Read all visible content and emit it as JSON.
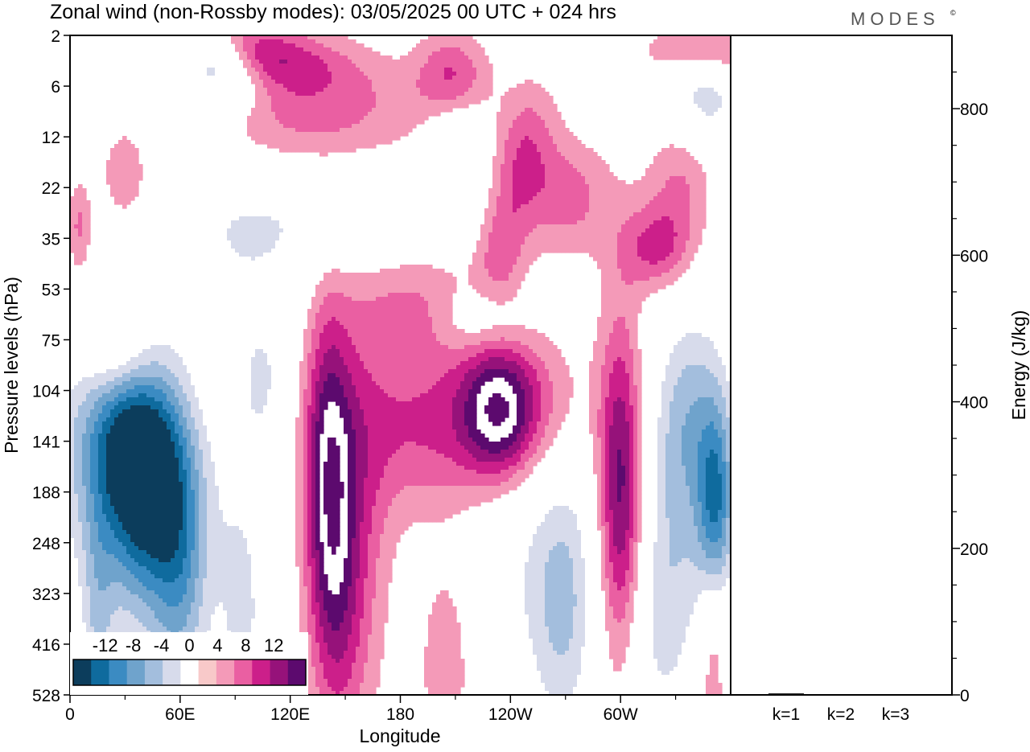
{
  "title": "Zonal wind (non-Rossby modes):  03/05/2025  00 UTC  + 024 hrs",
  "brand": "MODES",
  "brand_mark": "©",
  "chart_data": [
    {
      "type": "heatmap",
      "xlabel": "Longitude",
      "ylabel": "Pressure levels (hPa)",
      "x_ticks": [
        "0",
        "60E",
        "120E",
        "180",
        "120W",
        "60W"
      ],
      "x_tick_values": [
        0,
        60,
        120,
        180,
        240,
        300
      ],
      "xlim": [
        0,
        360
      ],
      "y_ticks": [
        "2",
        "6",
        "12",
        "22",
        "35",
        "53",
        "75",
        "104",
        "141",
        "188",
        "248",
        "323",
        "416",
        "528"
      ],
      "colorbar": {
        "labels": [
          "-12",
          "-8",
          "-4",
          "0",
          "4",
          "8",
          "12"
        ],
        "label_values": [
          -12,
          -8,
          -4,
          0,
          4,
          8,
          12
        ],
        "levels": [
          -14,
          -12,
          -10,
          -8,
          -6,
          -4,
          -2,
          2,
          4,
          6,
          8,
          10,
          12,
          14
        ],
        "colors": [
          "#0c3d5c",
          "#0f6b9e",
          "#3b8bc2",
          "#6fa3cc",
          "#a3bedd",
          "#d7dbeb",
          "#ffffff",
          "#f8c9c9",
          "#f49ab8",
          "#ea5fa2",
          "#cc1f8a",
          "#96127a",
          "#5c0a6e"
        ]
      },
      "features": [
        {
          "lon": 40,
          "level": 8.2,
          "value": -13,
          "sx": 18,
          "sy": 1.6,
          "tilt": -0.8
        },
        {
          "lon": 32,
          "level": 8.8,
          "value": -9,
          "sx": 28,
          "sy": 2.2,
          "tilt": -0.6
        },
        {
          "lon": 26,
          "level": 6.2,
          "value": 9,
          "sx": 16,
          "sy": 0.9,
          "tilt": -0.3
        },
        {
          "lon": 80,
          "level": 0.4,
          "value": -9,
          "sx": 16,
          "sy": 0.6,
          "tilt": -0.6
        },
        {
          "lon": 85,
          "level": 0.2,
          "value": 6,
          "sx": 40,
          "sy": 0.4,
          "tilt": -0.2
        },
        {
          "lon": 40,
          "level": 0.8,
          "value": -5,
          "sx": 30,
          "sy": 1.0,
          "tilt": 0
        },
        {
          "lon": 140,
          "level": 8.6,
          "value": 9,
          "sx": 9,
          "sy": 2.4,
          "tilt": 0
        },
        {
          "lon": 155,
          "level": 9.6,
          "value": 5,
          "sx": 14,
          "sy": 2.8,
          "tilt": 0
        },
        {
          "lon": 146,
          "level": 11.0,
          "value": 4,
          "sx": 10,
          "sy": 2.2,
          "tilt": 0
        },
        {
          "lon": 195,
          "level": 7.7,
          "value": 6,
          "sx": 32,
          "sy": 1.2,
          "tilt": 0
        },
        {
          "lon": 233,
          "level": 7.4,
          "value": 9,
          "sx": 14,
          "sy": 0.9,
          "tilt": 0
        },
        {
          "lon": 250,
          "level": 7.3,
          "value": 5,
          "sx": 22,
          "sy": 1.1,
          "tilt": 0
        },
        {
          "lon": 300,
          "level": 9.0,
          "value": 9,
          "sx": 8,
          "sy": 2.2,
          "tilt": 0
        },
        {
          "lon": 300,
          "level": 10.0,
          "value": 4,
          "sx": 14,
          "sy": 3.2,
          "tilt": 0
        },
        {
          "lon": 352,
          "level": 9.3,
          "value": -10,
          "sx": 7,
          "sy": 1.3,
          "tilt": 0
        },
        {
          "lon": 340,
          "level": 7.4,
          "value": -6,
          "sx": 16,
          "sy": 1.5,
          "tilt": 0
        },
        {
          "lon": 345,
          "level": 1.2,
          "value": -7,
          "sx": 14,
          "sy": 0.9,
          "tilt": 0
        },
        {
          "lon": 348,
          "level": 0.3,
          "value": 7,
          "sx": 22,
          "sy": 0.4,
          "tilt": 0
        },
        {
          "lon": 208,
          "level": 0.8,
          "value": 6,
          "sx": 14,
          "sy": 0.6,
          "tilt": 0
        },
        {
          "lon": 248,
          "level": 2.2,
          "value": 5,
          "sx": 12,
          "sy": 0.9,
          "tilt": 0.5
        },
        {
          "lon": 320,
          "level": 4.2,
          "value": 6,
          "sx": 14,
          "sy": 0.6,
          "tilt": 0
        },
        {
          "lon": 270,
          "level": 3.2,
          "value": 5,
          "sx": 18,
          "sy": 0.8,
          "tilt": 0
        },
        {
          "lon": 235,
          "level": 4.2,
          "value": 5,
          "sx": 10,
          "sy": 0.9,
          "tilt": 0.6
        },
        {
          "lon": 262,
          "level": 10.2,
          "value": -4,
          "sx": 28,
          "sy": 2.2,
          "tilt": 0.4
        },
        {
          "lon": 100,
          "level": 1.5,
          "value": 4,
          "sx": 30,
          "sy": 1.2,
          "tilt": -0.4
        },
        {
          "lon": 150,
          "level": 1.4,
          "value": 4,
          "sx": 40,
          "sy": 0.9,
          "tilt": -0.3
        },
        {
          "lon": 95,
          "level": 3.8,
          "value": -4,
          "sx": 30,
          "sy": 1.2,
          "tilt": 0
        },
        {
          "lon": 165,
          "level": 3.4,
          "value": -4,
          "sx": 40,
          "sy": 0.8,
          "tilt": 0
        },
        {
          "lon": 210,
          "level": 2.2,
          "value": -4,
          "sx": 12,
          "sy": 0.7,
          "tilt": 0
        },
        {
          "lon": 188,
          "level": 5.2,
          "value": 4,
          "sx": 26,
          "sy": 0.9,
          "tilt": 0
        },
        {
          "lon": 225,
          "level": 5.6,
          "value": -4,
          "sx": 16,
          "sy": 0.5,
          "tilt": 0
        },
        {
          "lon": 30,
          "level": 2.5,
          "value": 5,
          "sx": 10,
          "sy": 0.9,
          "tilt": 0
        },
        {
          "lon": 95,
          "level": 11.5,
          "value": -4,
          "sx": 10,
          "sy": 2.4,
          "tilt": 0
        },
        {
          "lon": 60,
          "level": 11.2,
          "value": -4,
          "sx": 10,
          "sy": 2.0,
          "tilt": 0
        },
        {
          "lon": 205,
          "level": 12.4,
          "value": 4,
          "sx": 10,
          "sy": 1.4,
          "tilt": 0
        },
        {
          "lon": 350,
          "level": 12.4,
          "value": 4,
          "sx": 5,
          "sy": 1.4,
          "tilt": 0
        },
        {
          "lon": 315,
          "level": 12.0,
          "value": -4,
          "sx": 16,
          "sy": 1.8,
          "tilt": 0
        },
        {
          "lon": 270,
          "level": 11.6,
          "value": -4,
          "sx": 12,
          "sy": 1.8,
          "tilt": 0
        },
        {
          "lon": 335,
          "level": 2.6,
          "value": 5,
          "sx": 14,
          "sy": 1.0,
          "tilt": 0.5
        },
        {
          "lon": 5,
          "level": 3.8,
          "value": 5,
          "sx": 5,
          "sy": 0.7,
          "tilt": 0
        },
        {
          "lon": 330,
          "level": 9.8,
          "value": -4,
          "sx": 14,
          "sy": 2.0,
          "tilt": 0
        },
        {
          "lon": 15,
          "level": 12.0,
          "value": -4,
          "sx": 6,
          "sy": 1.8,
          "tilt": 0
        },
        {
          "lon": 105,
          "level": 6.8,
          "value": -4,
          "sx": 10,
          "sy": 1.0,
          "tilt": 0
        }
      ]
    },
    {
      "type": "bar",
      "ylabel": "Energy (J/kg)",
      "categories": [
        "k=1",
        "k=2",
        "k=3"
      ],
      "values": [
        2,
        1,
        1
      ],
      "ylim": [
        0,
        900
      ],
      "y_ticks": [
        "0",
        "200",
        "400",
        "600",
        "800"
      ],
      "y_tick_values": [
        0,
        200,
        400,
        600,
        800
      ],
      "y_minor_step": 50,
      "bar_color": "#000000"
    }
  ]
}
